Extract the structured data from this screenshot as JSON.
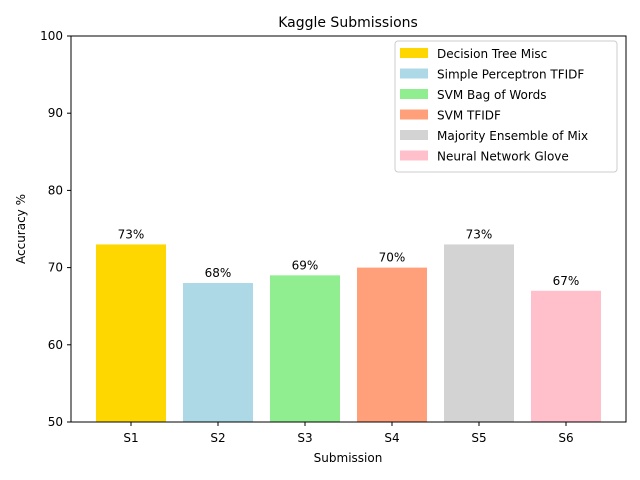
{
  "chart_data": {
    "type": "bar",
    "title": "Kaggle Submissions",
    "xlabel": "Submission",
    "ylabel": "Accuracy %",
    "ylim": [
      50,
      100
    ],
    "yticks": [
      50,
      60,
      70,
      80,
      90,
      100
    ],
    "categories": [
      "S1",
      "S2",
      "S3",
      "S4",
      "S5",
      "S6"
    ],
    "values": [
      73,
      68,
      69,
      70,
      73,
      67
    ],
    "data_labels": [
      "73%",
      "68%",
      "69%",
      "70%",
      "73%",
      "67%"
    ],
    "colors": [
      "#ffd700",
      "#add8e6",
      "#90ee90",
      "#ffa07a",
      "#d3d3d3",
      "#ffc0cb"
    ],
    "legend": {
      "placement": "top-right",
      "entries": [
        "Decision Tree Misc",
        "Simple Perceptron TFIDF",
        "SVM Bag of Words",
        "SVM TFIDF",
        "Majority Ensemble of Mix",
        "Neural Network Glove"
      ]
    },
    "grid": false
  }
}
